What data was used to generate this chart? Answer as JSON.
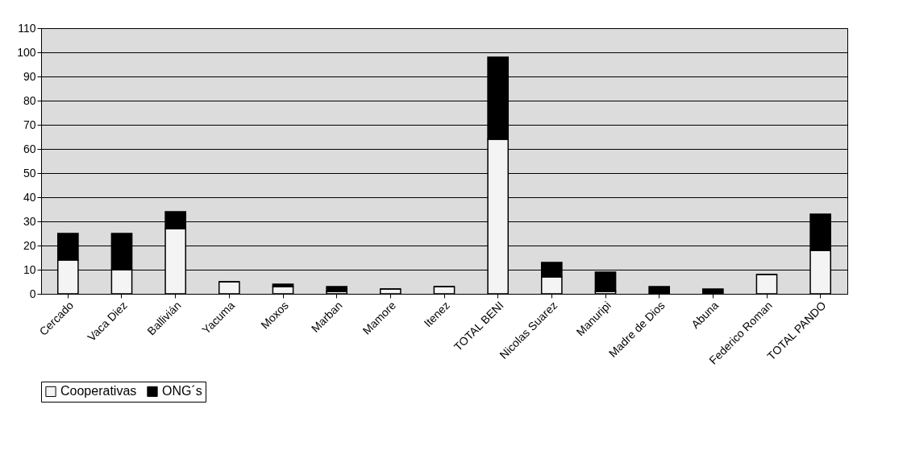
{
  "chart_data": {
    "type": "bar",
    "stacked": true,
    "categories": [
      "Cercado",
      "Vaca Diez",
      "Ballivián",
      "Yacuma",
      "Moxos",
      "Marban",
      "Mamore",
      "Itenez",
      "TOTAL BENI",
      "Nicolas Suarez",
      "Manuripi",
      "Madre de Dios",
      "Abuna",
      "Federico Roman",
      "TOTAL PANDO"
    ],
    "series": [
      {
        "name": "Cooperativas",
        "color": "#f4f4f4",
        "values": [
          14,
          10,
          27,
          5,
          3,
          1,
          2,
          3,
          64,
          7,
          1,
          0,
          0,
          8,
          18
        ]
      },
      {
        "name": "ONG´s",
        "color": "#000000",
        "values": [
          11,
          15,
          7,
          0,
          1,
          2,
          0,
          0,
          34,
          6,
          8,
          3,
          2,
          0,
          15
        ]
      }
    ],
    "ylim": [
      0,
      110
    ],
    "yticks": [
      0,
      10,
      20,
      30,
      40,
      50,
      60,
      70,
      80,
      90,
      100,
      110
    ],
    "grid": "y",
    "legend": "bottom"
  }
}
